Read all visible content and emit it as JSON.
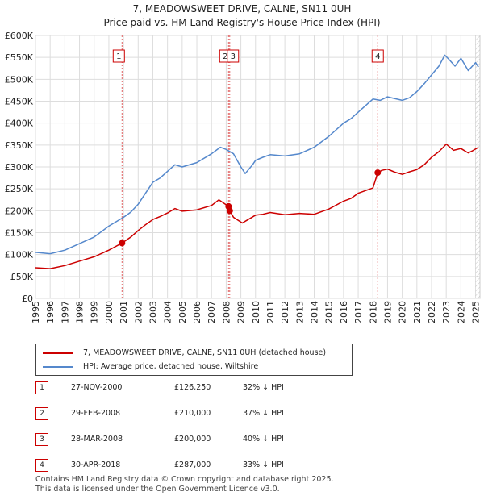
{
  "chart_data": {
    "type": "line",
    "title": "7, MEADOWSWEET DRIVE, CALNE, SN11 0UH",
    "subtitle": "Price paid vs. HM Land Registry's House Price Index (HPI)",
    "xlim": [
      1995,
      2025.3
    ],
    "ylim": [
      0,
      600000
    ],
    "x_ticks": [
      1995,
      1996,
      1997,
      1998,
      1999,
      2000,
      2001,
      2002,
      2003,
      2004,
      2005,
      2006,
      2007,
      2008,
      2009,
      2010,
      2011,
      2012,
      2013,
      2014,
      2015,
      2016,
      2017,
      2018,
      2019,
      2020,
      2021,
      2022,
      2023,
      2024,
      2025
    ],
    "y_ticks": [
      {
        "value": 0,
        "label": "£0"
      },
      {
        "value": 50000,
        "label": "£50K"
      },
      {
        "value": 100000,
        "label": "£100K"
      },
      {
        "value": 150000,
        "label": "£150K"
      },
      {
        "value": 200000,
        "label": "£200K"
      },
      {
        "value": 250000,
        "label": "£250K"
      },
      {
        "value": 300000,
        "label": "£300K"
      },
      {
        "value": 350000,
        "label": "£350K"
      },
      {
        "value": 400000,
        "label": "£400K"
      },
      {
        "value": 450000,
        "label": "£450K"
      },
      {
        "value": 500000,
        "label": "£500K"
      },
      {
        "value": 550000,
        "label": "£550K"
      },
      {
        "value": 600000,
        "label": "£600K"
      }
    ],
    "grid": true,
    "series": [
      {
        "name": "7, MEADOWSWEET DRIVE, CALNE, SN11 0UH (detached house)",
        "color": "#cc0000",
        "x": [
          1995,
          1996,
          1997,
          1998,
          1999,
          2000,
          2000.9,
          2001.5,
          2002,
          2002.5,
          2003,
          2003.5,
          2004,
          2004.5,
          2005,
          2006,
          2007,
          2007.5,
          2008.16,
          2008.24,
          2008.5,
          2009.1,
          2009.5,
          2010,
          2010.5,
          2011,
          2012,
          2013,
          2014,
          2015,
          2016,
          2016.5,
          2017,
          2018,
          2018.33,
          2018.6,
          2019,
          2019.5,
          2020,
          2020.5,
          2021,
          2021.5,
          2022,
          2022.5,
          2022.8,
          2023,
          2023.5,
          2024,
          2024.5,
          2024.8,
          2025.2
        ],
        "values": [
          70000,
          68000,
          75000,
          85000,
          95000,
          110000,
          126250,
          140000,
          155000,
          168000,
          180000,
          187000,
          195000,
          205000,
          199000,
          202000,
          212000,
          225000,
          210000,
          200000,
          185000,
          172000,
          180000,
          190000,
          192000,
          196000,
          191000,
          194000,
          192000,
          204000,
          222000,
          228000,
          240000,
          252000,
          287000,
          292000,
          295000,
          288000,
          283000,
          289000,
          294000,
          305000,
          322000,
          335000,
          345000,
          352000,
          338000,
          342000,
          332000,
          337000,
          345000
        ]
      },
      {
        "name": "HPI: Average price, detached house, Wiltshire",
        "color": "#5588cc",
        "x": [
          1995,
          1996,
          1997,
          1998,
          1999,
          2000,
          2001,
          2001.5,
          2002,
          2002.5,
          2003,
          2003.5,
          2004,
          2004.5,
          2005,
          2006,
          2007,
          2007.6,
          2008,
          2008.5,
          2009,
          2009.3,
          2009.8,
          2010,
          2010.5,
          2011,
          2012,
          2013,
          2014,
          2015,
          2016,
          2016.5,
          2017,
          2017.5,
          2018,
          2018.5,
          2019,
          2020,
          2020.5,
          2021,
          2021.5,
          2022,
          2022.5,
          2022.9,
          2023.2,
          2023.6,
          2024,
          2024.5,
          2025,
          2025.2
        ],
        "values": [
          105000,
          102000,
          110000,
          125000,
          140000,
          165000,
          185000,
          197000,
          215000,
          240000,
          265000,
          275000,
          290000,
          305000,
          300000,
          310000,
          330000,
          345000,
          340000,
          330000,
          300000,
          285000,
          305000,
          315000,
          322000,
          328000,
          325000,
          330000,
          345000,
          370000,
          400000,
          410000,
          425000,
          440000,
          455000,
          452000,
          460000,
          452000,
          458000,
          472000,
          490000,
          510000,
          530000,
          555000,
          545000,
          530000,
          548000,
          520000,
          538000,
          528000
        ]
      }
    ],
    "transactions": [
      {
        "n": "1",
        "x": 2000.9,
        "value": 126250
      },
      {
        "n": "2",
        "x": 2008.16,
        "value": 210000
      },
      {
        "n": "3",
        "x": 2008.24,
        "value": 200000
      },
      {
        "n": "4",
        "x": 2018.33,
        "value": 287000
      }
    ],
    "vlines": [
      {
        "label": "1",
        "x": 2000.9
      },
      {
        "label": "2",
        "x": 2008.16
      },
      {
        "label": "3",
        "x": 2008.24
      },
      {
        "label": "4",
        "x": 2018.33
      }
    ],
    "hatch_after": 2025.0
  },
  "legend": {
    "property": "7, MEADOWSWEET DRIVE, CALNE, SN11 0UH (detached house)",
    "hpi": "HPI: Average price, detached house, Wiltshire"
  },
  "transactions_table": [
    {
      "n": "1",
      "date": "27-NOV-2000",
      "price": "£126,250",
      "pct": "32% ↓ HPI"
    },
    {
      "n": "2",
      "date": "29-FEB-2008",
      "price": "£210,000",
      "pct": "37% ↓ HPI"
    },
    {
      "n": "3",
      "date": "28-MAR-2008",
      "price": "£200,000",
      "pct": "40% ↓ HPI"
    },
    {
      "n": "4",
      "date": "30-APR-2018",
      "price": "£287,000",
      "pct": "33% ↓ HPI"
    }
  ],
  "footer": {
    "line1": "Contains HM Land Registry data © Crown copyright and database right 2025.",
    "line2": "This data is licensed under the Open Government Licence v3.0."
  }
}
